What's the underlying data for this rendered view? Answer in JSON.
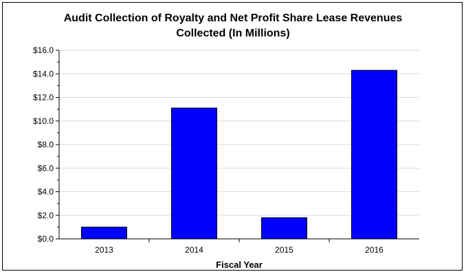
{
  "chart_data": {
    "type": "bar",
    "title_lines": [
      "Audit Collection of Royalty and Net Profit Share Lease Revenues",
      "Collected (In Millions)"
    ],
    "xlabel": "Fiscal Year",
    "ylabel": "",
    "categories": [
      "2013",
      "2014",
      "2015",
      "2016"
    ],
    "values": [
      1.0,
      11.1,
      1.8,
      14.3
    ],
    "ylim": [
      0,
      16
    ],
    "y_ticks": [
      "$0.0",
      "$2.0",
      "$4.0",
      "$6.0",
      "$8.0",
      "$10.0",
      "$12.0",
      "$14.0",
      "$16.0"
    ],
    "grid": true,
    "legend": "none",
    "bar_color": "#0000ff",
    "grid_color": "#d9d9d9"
  }
}
